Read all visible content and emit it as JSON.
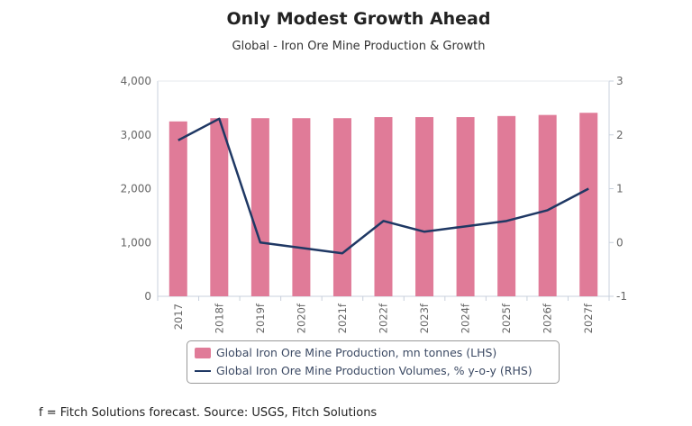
{
  "chart_data": {
    "type": "bar+line",
    "title": "Only Modest Growth Ahead",
    "subtitle": "Global - Iron Ore Mine Production & Growth",
    "categories": [
      "2017",
      "2018f",
      "2019f",
      "2020f",
      "2021f",
      "2022f",
      "2023f",
      "2024f",
      "2025f",
      "2026f",
      "2027f"
    ],
    "series": [
      {
        "name": "Global Iron Ore Mine Production, mn tonnes (LHS)",
        "type": "bar",
        "axis": "left",
        "color": "#e07b98",
        "values": [
          3250,
          3310,
          3310,
          3310,
          3310,
          3330,
          3330,
          3330,
          3350,
          3370,
          3410
        ]
      },
      {
        "name": "Global Iron Ore Mine Production Volumes, % y-o-y (RHS)",
        "type": "line",
        "axis": "right",
        "color": "#1f3864",
        "values": [
          1.9,
          2.3,
          0.0,
          -0.1,
          -0.2,
          0.4,
          0.2,
          0.3,
          0.4,
          0.6,
          1.0
        ]
      }
    ],
    "left_axis": {
      "ylim": [
        0,
        4000
      ],
      "ticks": [
        "0",
        "1,000",
        "2,000",
        "3,000",
        "4,000"
      ]
    },
    "right_axis": {
      "ylim": [
        -1,
        3
      ],
      "ticks": [
        "-1",
        "0",
        "1",
        "2",
        "3"
      ]
    },
    "legend_position": "bottom",
    "grid": false
  },
  "footnote": "f = Fitch Solutions forecast. Source: USGS, Fitch Solutions"
}
